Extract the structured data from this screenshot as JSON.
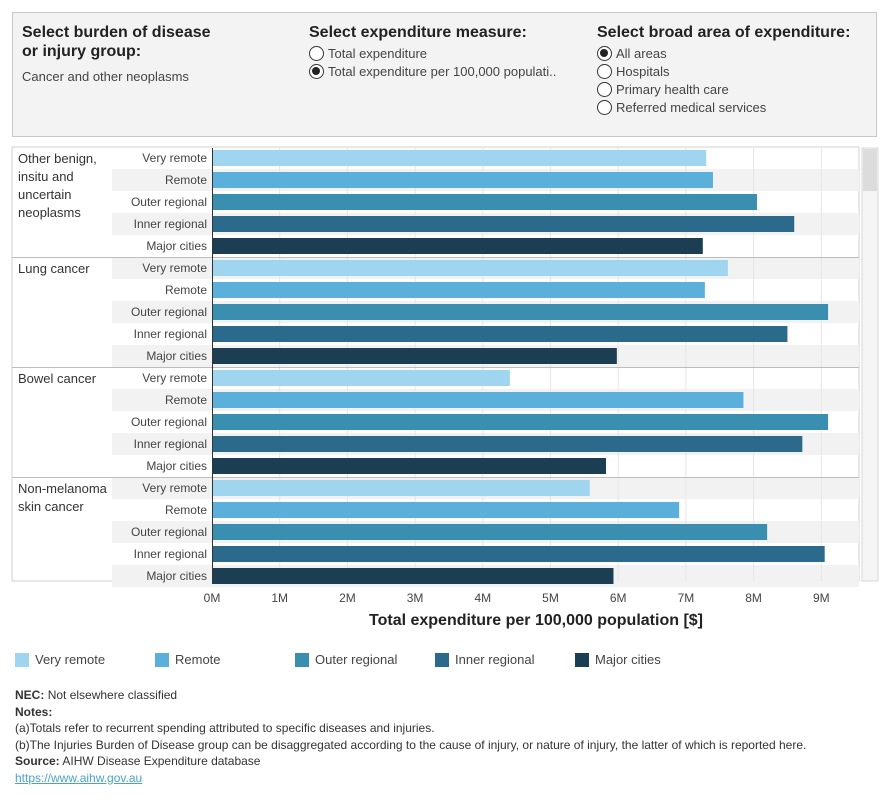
{
  "controls": {
    "disease": {
      "title_line1": "Select burden of disease",
      "title_line2": "or injury group:",
      "value": "Cancer and other neoplasms"
    },
    "measure": {
      "title": "Select expenditure measure:",
      "options": [
        "Total expenditure",
        "Total expenditure per 100,000 populati.."
      ],
      "selected": 1
    },
    "area": {
      "title": "Select broad area of expenditure:",
      "options": [
        "All areas",
        "Hospitals",
        "Primary health care",
        "Referred medical services"
      ],
      "selected": 0
    }
  },
  "chart_data": {
    "type": "bar",
    "orientation": "horizontal",
    "xlabel": "Total expenditure per 100,000 population [$]",
    "xticks": [
      "0M",
      "1M",
      "2M",
      "3M",
      "4M",
      "5M",
      "6M",
      "7M",
      "8M",
      "9M"
    ],
    "xlim": [
      0,
      9.6
    ],
    "unit": "M",
    "grid": true,
    "legend_position": "bottom",
    "categories": [
      "Very remote",
      "Remote",
      "Outer regional",
      "Inner regional",
      "Major cities"
    ],
    "colors": [
      "#9fd5ee",
      "#5aafdb",
      "#3a8fb0",
      "#2c6a8c",
      "#1c3e52"
    ],
    "groups": [
      {
        "label_lines": [
          "Other benign,",
          "insitu and",
          "uncertain",
          "neoplasms"
        ],
        "values": [
          7.3,
          7.4,
          8.05,
          8.6,
          7.25
        ]
      },
      {
        "label_lines": [
          "Lung cancer"
        ],
        "values": [
          7.62,
          7.28,
          9.1,
          8.5,
          5.98
        ]
      },
      {
        "label_lines": [
          "Bowel cancer"
        ],
        "values": [
          4.4,
          7.85,
          9.1,
          8.72,
          5.82
        ]
      },
      {
        "label_lines": [
          "Non-melanoma",
          "skin cancer"
        ],
        "values": [
          5.58,
          6.9,
          8.2,
          9.05,
          5.93
        ]
      }
    ]
  },
  "legend": {
    "items": [
      "Very remote",
      "Remote",
      "Outer regional",
      "Inner regional",
      "Major cities"
    ]
  },
  "notes": {
    "nec_label": "NEC:",
    "nec_text": "Not elsewhere classified",
    "notes_label": "Notes:",
    "note_a": "(a)Totals refer to recurrent spending attributed to specific diseases and injuries.",
    "note_b": "(b)The Injuries Burden of Disease group can be disaggregated according to the cause of injury, or nature of injury, the latter of which is reported here.",
    "source_label": "Source:",
    "source_text": "AIHW Disease Expenditure database",
    "link": "https://www.aihw.gov.au"
  }
}
